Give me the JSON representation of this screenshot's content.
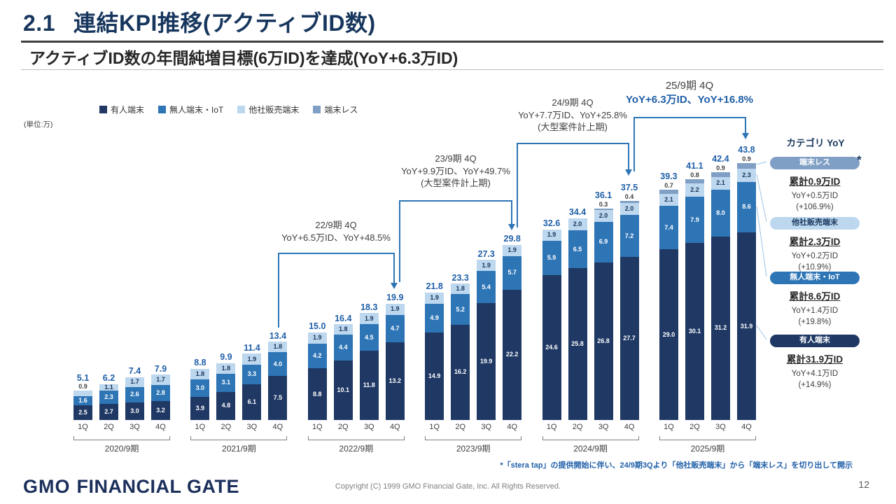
{
  "slide": {
    "section_number": "2.1",
    "title": "連結KPI推移(アクティブID数)",
    "subtitle": "アクティブID数の年間純増目標(6万ID)を達成(YoY+6.3万ID)",
    "footnote": "*「stera tap」の提供開始に伴い、24/9期3Qより「他社販売端末」から「端末レス」を切り出して開示",
    "copyright": "Copyright (C) 1999 GMO Financial Gate, Inc. All Rights Reserved.",
    "page_number": "12",
    "logo": {
      "gmo": "GMO",
      "rest": "FINANCIAL GATE"
    }
  },
  "chart_data": {
    "type": "bar",
    "stacked": true,
    "unit_label": "(単位:万)",
    "ylim": [
      0,
      45
    ],
    "quarters": [
      "1Q",
      "2Q",
      "3Q",
      "4Q"
    ],
    "legend": [
      {
        "name": "有人端末",
        "color": "#1f3864"
      },
      {
        "name": "無人端末・IoT",
        "color": "#2e75b6"
      },
      {
        "name": "他社販売端末",
        "color": "#bdd7ee"
      },
      {
        "name": "端末レス",
        "color": "#7f9fc4"
      }
    ],
    "groups": [
      {
        "year": "2020/9期",
        "totals": [
          5.1,
          6.2,
          7.4,
          7.9
        ],
        "bars": [
          [
            2.5,
            1.6,
            0.9,
            0
          ],
          [
            2.7,
            2.3,
            1.1,
            0
          ],
          [
            3.0,
            2.6,
            1.7,
            0
          ],
          [
            3.2,
            2.8,
            1.7,
            0
          ]
        ]
      },
      {
        "year": "2021/9期",
        "totals": [
          8.8,
          9.9,
          11.4,
          13.4
        ],
        "bars": [
          [
            3.9,
            3.0,
            1.8,
            0
          ],
          [
            4.8,
            3.1,
            1.8,
            0
          ],
          [
            6.1,
            3.3,
            1.9,
            0
          ],
          [
            7.5,
            4.0,
            1.8,
            0
          ]
        ]
      },
      {
        "year": "2022/9期",
        "totals": [
          15.0,
          16.4,
          18.3,
          19.9
        ],
        "bars": [
          [
            8.8,
            4.2,
            1.9,
            0
          ],
          [
            10.1,
            4.4,
            1.8,
            0
          ],
          [
            11.8,
            4.5,
            1.9,
            0
          ],
          [
            13.2,
            4.7,
            1.9,
            0
          ]
        ]
      },
      {
        "year": "2023/9期",
        "totals": [
          21.8,
          23.3,
          27.3,
          29.8
        ],
        "bars": [
          [
            14.9,
            4.9,
            1.9,
            0
          ],
          [
            16.2,
            5.2,
            1.8,
            0
          ],
          [
            19.9,
            5.4,
            1.9,
            0
          ],
          [
            22.2,
            5.7,
            1.9,
            0
          ]
        ]
      },
      {
        "year": "2024/9期",
        "totals": [
          32.6,
          34.4,
          36.1,
          37.5
        ],
        "bars": [
          [
            24.6,
            5.9,
            1.9,
            0
          ],
          [
            25.8,
            6.5,
            2.0,
            0
          ],
          [
            26.8,
            6.9,
            2.0,
            0.3
          ],
          [
            27.7,
            7.2,
            2.0,
            0.4
          ]
        ]
      },
      {
        "year": "2025/9期",
        "totals": [
          39.3,
          41.1,
          42.4,
          43.8
        ],
        "bars": [
          [
            29.0,
            7.4,
            2.1,
            0.7
          ],
          [
            30.1,
            7.9,
            2.2,
            0.8
          ],
          [
            31.2,
            8.0,
            2.1,
            0.9
          ],
          [
            31.9,
            8.6,
            2.3,
            0.9
          ]
        ]
      }
    ]
  },
  "annotations": [
    {
      "title": "22/9期 4Q",
      "line2": "YoY+6.5万ID、YoY+48.5%",
      "line3": "",
      "highlight": false
    },
    {
      "title": "23/9期 4Q",
      "line2": "YoY+9.9万ID、YoY+49.7%",
      "line3": "(大型案件計上期)",
      "highlight": false
    },
    {
      "title": "24/9期 4Q",
      "line2": "YoY+7.7万ID、YoY+25.8%",
      "line3": "(大型案件計上期)",
      "highlight": false
    },
    {
      "title": "25/9期 4Q",
      "line2": "YoY+6.3万ID、YoY+16.8%",
      "line3": "",
      "highlight": true
    }
  ],
  "category_panel": {
    "title": "カテゴリ YoY",
    "asterisk": "*",
    "items": [
      {
        "badge": "端末レス",
        "color": "#7f9fc4",
        "text_color": "#ffffff",
        "total": "累計0.9万ID",
        "yoy": "YoY+0.5万ID",
        "pct": "(+106.9%)"
      },
      {
        "badge": "他社販売端末",
        "color": "#bdd7ee",
        "text_color": "#17365d",
        "total": "累計2.3万ID",
        "yoy": "YoY+0.2万ID",
        "pct": "(+10.9%)"
      },
      {
        "badge": "無人端末・IoT",
        "color": "#2e75b6",
        "text_color": "#ffffff",
        "total": "累計8.6万ID",
        "yoy": "YoY+1.4万ID",
        "pct": "(+19.8%)"
      },
      {
        "badge": "有人端末",
        "color": "#1f3864",
        "text_color": "#ffffff",
        "total": "累計31.9万ID",
        "yoy": "YoY+4.1万ID",
        "pct": "(+14.9%)"
      }
    ]
  }
}
